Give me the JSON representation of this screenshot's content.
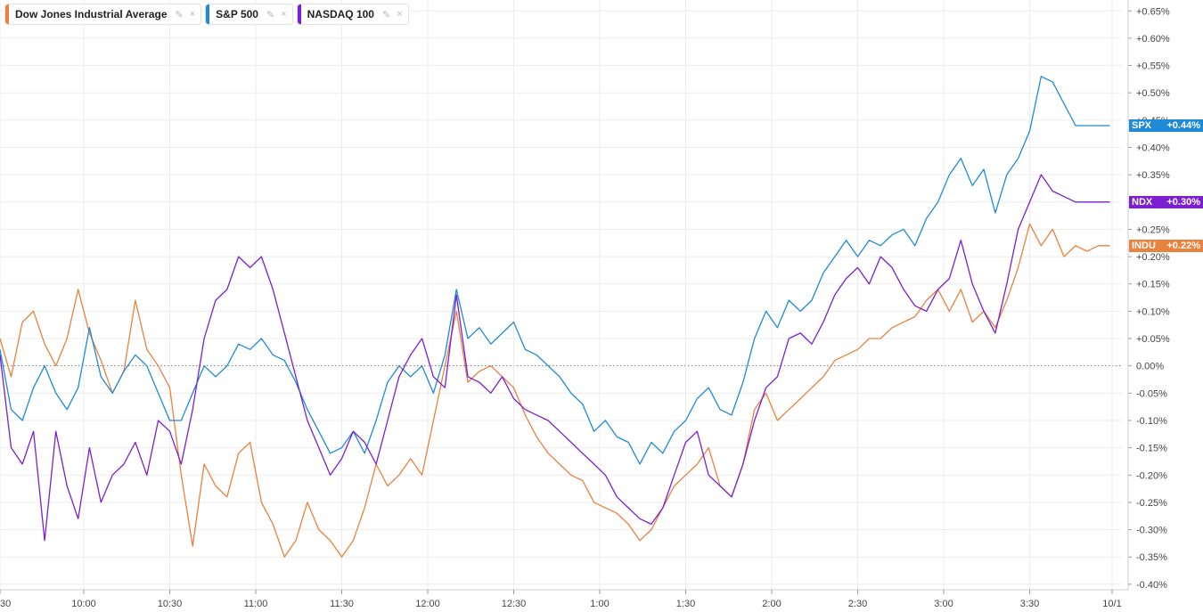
{
  "legend": [
    {
      "name": "Dow Jones Industrial Average",
      "color": "#e8823f",
      "pin_icon": "pin-icon",
      "close_icon": "close-icon",
      "pin_glyph": "✎",
      "close_glyph": "×"
    },
    {
      "name": "S&P 500",
      "color": "#1f8ad6",
      "pin_icon": "pin-icon",
      "close_icon": "close-icon",
      "pin_glyph": "✎",
      "close_glyph": "×"
    },
    {
      "name": "NASDAQ 100",
      "color": "#7b1fd0",
      "pin_icon": "pin-icon",
      "close_icon": "close-icon",
      "pin_glyph": "✎",
      "close_glyph": "×"
    }
  ],
  "tags": [
    {
      "symbol": "SPX",
      "value": "+0.44%",
      "color": "#1f8ad6"
    },
    {
      "symbol": "NDX",
      "value": "+0.30%",
      "color": "#7b1fd0"
    },
    {
      "symbol": "INDU",
      "value": "+0.22%",
      "color": "#e8823f"
    }
  ],
  "chart_data": {
    "type": "line",
    "y_unit": "%",
    "ylim": [
      -0.41,
      0.67
    ],
    "y_ticks": [
      "+0.65%",
      "+0.60%",
      "+0.55%",
      "+0.50%",
      "+0.45%",
      "+0.40%",
      "+0.35%",
      "+0.30%",
      "+0.25%",
      "+0.20%",
      "+0.15%",
      "+0.10%",
      "+0.05%",
      "0.00%",
      "-0.05%",
      "-0.10%",
      "-0.15%",
      "-0.20%",
      "-0.25%",
      "-0.30%",
      "-0.35%",
      "-0.40%"
    ],
    "y_tick_values": [
      0.65,
      0.6,
      0.55,
      0.5,
      0.45,
      0.4,
      0.35,
      0.3,
      0.25,
      0.2,
      0.15,
      0.1,
      0.05,
      0.0,
      -0.05,
      -0.1,
      -0.15,
      -0.2,
      -0.25,
      -0.3,
      -0.35,
      -0.4
    ],
    "x_ticks": [
      "30",
      "10:00",
      "10:30",
      "11:00",
      "11:30",
      "12:00",
      "12:30",
      "1:00",
      "1:30",
      "2:00",
      "2:30",
      "3:00",
      "3:30",
      "10/1"
    ],
    "x_tick_values": [
      0,
      30,
      60,
      90,
      120,
      150,
      180,
      210,
      240,
      270,
      300,
      330,
      360,
      390
    ],
    "xlim": [
      0,
      390
    ],
    "baseline": 0.0,
    "grid": true,
    "legend_position": "top-left",
    "series": [
      {
        "name": "Dow Jones Industrial Average",
        "symbol": "INDU",
        "color": "#e8823f",
        "x": [
          0,
          4,
          8,
          12,
          16,
          20,
          24,
          28,
          32,
          36,
          40,
          44,
          48,
          52,
          56,
          60,
          64,
          68,
          72,
          76,
          80,
          84,
          88,
          92,
          96,
          100,
          104,
          108,
          112,
          116,
          120,
          124,
          128,
          132,
          136,
          140,
          144,
          148,
          152,
          156,
          160,
          164,
          168,
          172,
          176,
          180,
          184,
          188,
          192,
          196,
          200,
          204,
          208,
          212,
          216,
          220,
          224,
          228,
          232,
          236,
          240,
          244,
          248,
          252,
          256,
          260,
          264,
          268,
          272,
          276,
          280,
          284,
          288,
          292,
          296,
          300,
          304,
          308,
          312,
          316,
          320,
          324,
          328,
          332,
          336,
          340,
          344,
          348,
          352,
          356,
          360,
          364,
          368,
          372,
          376,
          380,
          384,
          388
        ],
        "y": [
          0.05,
          -0.02,
          0.08,
          0.1,
          0.04,
          0.0,
          0.05,
          0.14,
          0.06,
          0.01,
          -0.05,
          -0.01,
          0.12,
          0.03,
          0.0,
          -0.04,
          -0.2,
          -0.33,
          -0.18,
          -0.22,
          -0.24,
          -0.16,
          -0.14,
          -0.25,
          -0.29,
          -0.35,
          -0.32,
          -0.25,
          -0.3,
          -0.32,
          -0.35,
          -0.32,
          -0.26,
          -0.18,
          -0.22,
          -0.2,
          -0.17,
          -0.2,
          -0.1,
          0.0,
          0.1,
          -0.03,
          -0.01,
          0.0,
          -0.02,
          -0.04,
          -0.09,
          -0.13,
          -0.16,
          -0.18,
          -0.2,
          -0.21,
          -0.25,
          -0.26,
          -0.27,
          -0.29,
          -0.32,
          -0.3,
          -0.26,
          -0.22,
          -0.2,
          -0.18,
          -0.15,
          -0.22,
          -0.24,
          -0.18,
          -0.08,
          -0.05,
          -0.1,
          -0.08,
          -0.06,
          -0.04,
          -0.02,
          0.01,
          0.02,
          0.03,
          0.05,
          0.05,
          0.07,
          0.08,
          0.09,
          0.12,
          0.14,
          0.1,
          0.14,
          0.08,
          0.1,
          0.07,
          0.12,
          0.18,
          0.26,
          0.22,
          0.25,
          0.2,
          0.22,
          0.21,
          0.22,
          0.22
        ]
      },
      {
        "name": "S&P 500",
        "symbol": "SPX",
        "color": "#1f8ad6",
        "x": [
          0,
          4,
          8,
          12,
          16,
          20,
          24,
          28,
          32,
          36,
          40,
          44,
          48,
          52,
          56,
          60,
          64,
          68,
          72,
          76,
          80,
          84,
          88,
          92,
          96,
          100,
          104,
          108,
          112,
          116,
          120,
          124,
          128,
          132,
          136,
          140,
          144,
          148,
          152,
          156,
          160,
          164,
          168,
          172,
          176,
          180,
          184,
          188,
          192,
          196,
          200,
          204,
          208,
          212,
          216,
          220,
          224,
          228,
          232,
          236,
          240,
          244,
          248,
          252,
          256,
          260,
          264,
          268,
          272,
          276,
          280,
          284,
          288,
          292,
          296,
          300,
          304,
          308,
          312,
          316,
          320,
          324,
          328,
          332,
          336,
          340,
          344,
          348,
          352,
          356,
          360,
          364,
          368,
          372,
          376,
          380,
          384,
          388
        ],
        "y": [
          0.03,
          -0.08,
          -0.1,
          -0.04,
          0.0,
          -0.05,
          -0.08,
          -0.04,
          0.07,
          -0.02,
          -0.05,
          -0.01,
          0.02,
          0.0,
          -0.05,
          -0.1,
          -0.1,
          -0.05,
          0.0,
          -0.02,
          0.0,
          0.04,
          0.03,
          0.05,
          0.02,
          0.01,
          -0.03,
          -0.08,
          -0.12,
          -0.16,
          -0.15,
          -0.12,
          -0.16,
          -0.1,
          -0.03,
          0.0,
          -0.02,
          0.0,
          -0.05,
          0.02,
          0.14,
          0.05,
          0.07,
          0.04,
          0.06,
          0.08,
          0.03,
          0.02,
          0.0,
          -0.02,
          -0.05,
          -0.07,
          -0.12,
          -0.1,
          -0.13,
          -0.14,
          -0.18,
          -0.14,
          -0.16,
          -0.12,
          -0.1,
          -0.06,
          -0.04,
          -0.08,
          -0.09,
          -0.03,
          0.05,
          0.1,
          0.07,
          0.12,
          0.1,
          0.12,
          0.17,
          0.2,
          0.23,
          0.2,
          0.23,
          0.22,
          0.24,
          0.25,
          0.22,
          0.27,
          0.3,
          0.35,
          0.38,
          0.33,
          0.36,
          0.28,
          0.35,
          0.38,
          0.43,
          0.53,
          0.52,
          0.48,
          0.44,
          0.44,
          0.44,
          0.44
        ]
      },
      {
        "name": "NASDAQ 100",
        "symbol": "NDX",
        "color": "#7b1fd0",
        "x": [
          0,
          4,
          8,
          12,
          16,
          20,
          24,
          28,
          32,
          36,
          40,
          44,
          48,
          52,
          56,
          60,
          64,
          68,
          72,
          76,
          80,
          84,
          88,
          92,
          96,
          100,
          104,
          108,
          112,
          116,
          120,
          124,
          128,
          132,
          136,
          140,
          144,
          148,
          152,
          156,
          160,
          164,
          168,
          172,
          176,
          180,
          184,
          188,
          192,
          196,
          200,
          204,
          208,
          212,
          216,
          220,
          224,
          228,
          232,
          236,
          240,
          244,
          248,
          252,
          256,
          260,
          264,
          268,
          272,
          276,
          280,
          284,
          288,
          292,
          296,
          300,
          304,
          308,
          312,
          316,
          320,
          324,
          328,
          332,
          336,
          340,
          344,
          348,
          352,
          356,
          360,
          364,
          368,
          372,
          376,
          380,
          384,
          388
        ],
        "y": [
          0.02,
          -0.15,
          -0.18,
          -0.12,
          -0.32,
          -0.12,
          -0.22,
          -0.28,
          -0.15,
          -0.25,
          -0.2,
          -0.18,
          -0.14,
          -0.2,
          -0.1,
          -0.12,
          -0.18,
          -0.08,
          0.05,
          0.12,
          0.14,
          0.2,
          0.18,
          0.2,
          0.14,
          0.06,
          -0.02,
          -0.1,
          -0.15,
          -0.2,
          -0.17,
          -0.12,
          -0.14,
          -0.18,
          -0.1,
          -0.02,
          0.02,
          0.05,
          -0.02,
          -0.04,
          0.13,
          -0.02,
          -0.03,
          -0.05,
          -0.02,
          -0.06,
          -0.08,
          -0.09,
          -0.1,
          -0.12,
          -0.14,
          -0.16,
          -0.18,
          -0.2,
          -0.24,
          -0.26,
          -0.28,
          -0.29,
          -0.26,
          -0.2,
          -0.14,
          -0.12,
          -0.2,
          -0.22,
          -0.24,
          -0.18,
          -0.1,
          -0.04,
          -0.02,
          0.05,
          0.06,
          0.04,
          0.08,
          0.13,
          0.16,
          0.18,
          0.15,
          0.2,
          0.18,
          0.14,
          0.11,
          0.1,
          0.14,
          0.16,
          0.23,
          0.15,
          0.1,
          0.06,
          0.15,
          0.25,
          0.3,
          0.35,
          0.32,
          0.31,
          0.3,
          0.3,
          0.3,
          0.3
        ]
      }
    ]
  }
}
